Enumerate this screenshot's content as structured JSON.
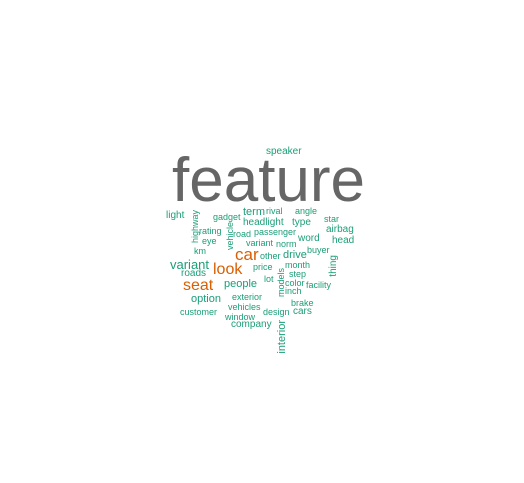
{
  "colors": {
    "dominant": "#666666",
    "primary": "#d95f02",
    "secondary": "#1b9e77"
  },
  "words": {
    "feature": "feature",
    "speaker": "speaker",
    "light": "light",
    "highway": "highway",
    "gadget": "gadget",
    "term": "term",
    "rival": "rival",
    "angle": "angle",
    "star": "star",
    "rating": "rating",
    "vehicle": "vehicle",
    "road": "road",
    "headlight": "headlight",
    "type": "type",
    "airbag": "airbag",
    "passenger": "passenger",
    "eye": "eye",
    "variant_small": "variant",
    "norm": "norm",
    "word": "word",
    "head": "head",
    "km": "km",
    "car": "car",
    "other": "other",
    "drive": "drive",
    "buyer": "buyer",
    "variant_mid": "variant",
    "month": "month",
    "thing": "thing",
    "roads": "roads",
    "look": "look",
    "price": "price",
    "step": "step",
    "models": "models",
    "lot": "lot",
    "color": "color",
    "facility": "facility",
    "people": "people",
    "seat": "seat",
    "inch": "inch",
    "option": "option",
    "exterior": "exterior",
    "brake": "brake",
    "vehicles": "vehicles",
    "customer": "customer",
    "design": "design",
    "cars": "cars",
    "window": "window",
    "company": "company",
    "interior": "interior"
  }
}
